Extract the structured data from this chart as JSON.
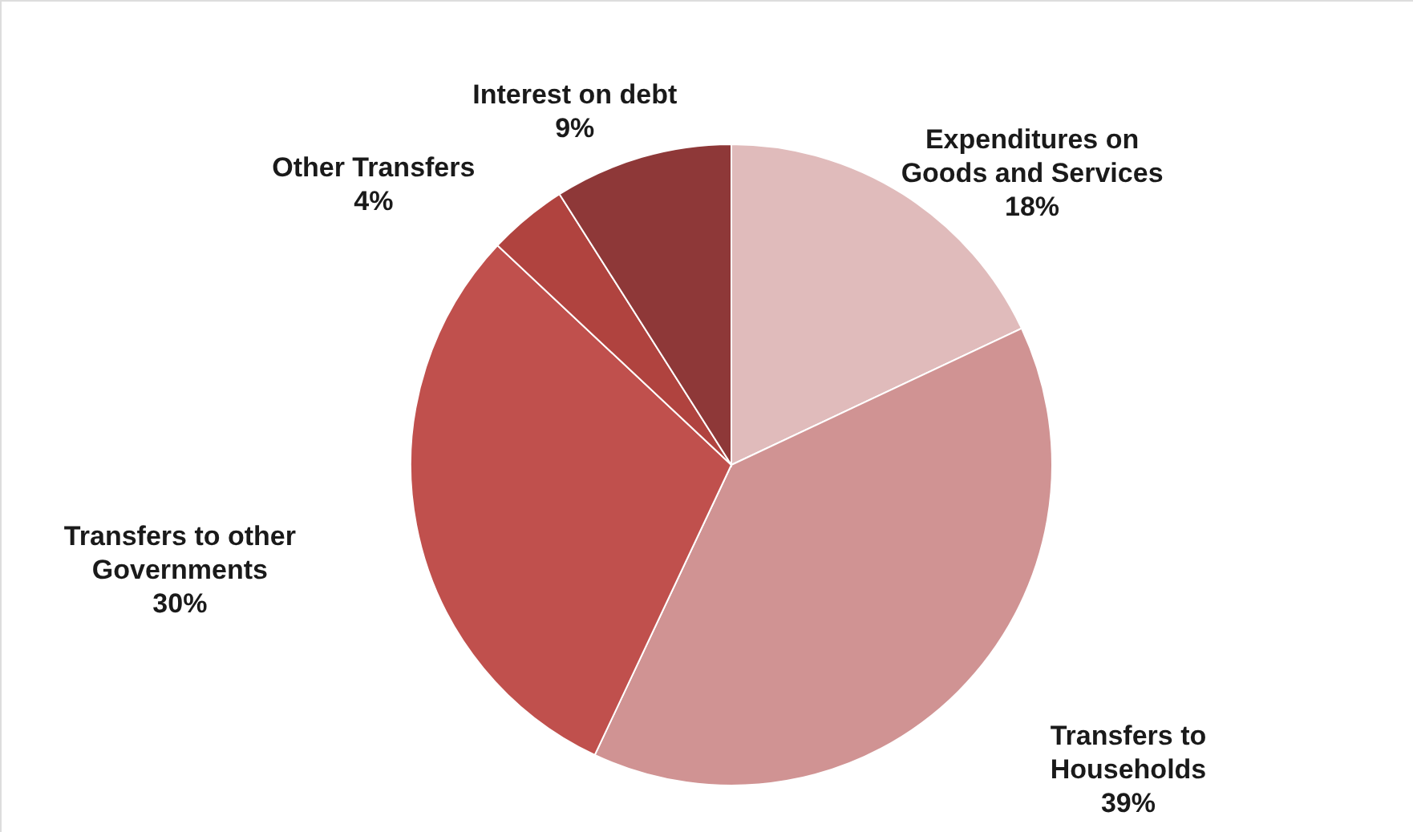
{
  "chart_data": {
    "type": "pie",
    "categories": [
      "Expenditures on Goods and Services",
      "Transfers to Households",
      "Transfers to other Governments",
      "Other Transfers",
      "Interest on debt"
    ],
    "values": [
      18,
      39,
      30,
      4,
      9
    ],
    "value_labels": [
      "18%",
      "39%",
      "30%",
      "4%",
      "9%"
    ],
    "colors": [
      "#e0bbbb",
      "#d09393",
      "#c0504d",
      "#b0433f",
      "#8e3838"
    ]
  }
}
